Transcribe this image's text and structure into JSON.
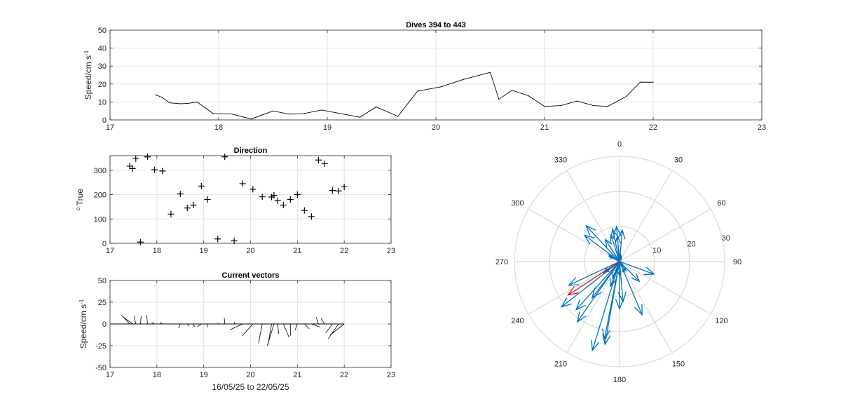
{
  "chart_data": [
    {
      "type": "line",
      "title": "Dives 394 to 443",
      "ylabel": "Speed/cm s",
      "ylabel_sup": "-1",
      "xlim": [
        17,
        23
      ],
      "ylim": [
        0,
        50
      ],
      "xticks": [
        17,
        18,
        19,
        20,
        21,
        22,
        23
      ],
      "yticks": [
        0,
        10,
        20,
        30,
        40,
        50
      ],
      "grid": true,
      "x": [
        17.42,
        17.48,
        17.55,
        17.65,
        17.72,
        17.8,
        17.95,
        18.12,
        18.3,
        18.5,
        18.65,
        18.78,
        18.95,
        19.08,
        19.3,
        19.45,
        19.65,
        19.83,
        20.05,
        20.25,
        20.5,
        20.58,
        20.7,
        20.85,
        21.0,
        21.15,
        21.3,
        21.45,
        21.58,
        21.75,
        21.88,
        22.0
      ],
      "y": [
        14,
        12.5,
        9.5,
        9,
        9.2,
        10,
        3.5,
        3.3,
        0.5,
        5,
        3.2,
        3.5,
        5.5,
        4,
        1.5,
        7.2,
        2,
        16,
        18.5,
        22.5,
        26.5,
        11.5,
        16.5,
        13.5,
        7.5,
        8,
        10.5,
        8,
        7.5,
        13,
        21,
        21
      ]
    },
    {
      "type": "scatter",
      "title": "Direction",
      "ylabel": "True",
      "ylabel_pre": "o",
      "xlim": [
        17,
        23
      ],
      "ylim": [
        0,
        360
      ],
      "xticks": [
        17,
        18,
        19,
        20,
        21,
        22,
        23
      ],
      "yticks": [
        0,
        100,
        200,
        300
      ],
      "grid": true,
      "marker": "+",
      "x": [
        17.42,
        17.48,
        17.55,
        17.65,
        17.8,
        17.95,
        18.12,
        18.3,
        18.5,
        18.65,
        18.78,
        18.95,
        19.08,
        19.3,
        19.45,
        19.65,
        19.83,
        20.05,
        20.25,
        20.45,
        20.5,
        20.58,
        20.7,
        20.85,
        21.0,
        21.15,
        21.3,
        21.45,
        21.58,
        21.75,
        21.88,
        22.0
      ],
      "y": [
        317,
        307,
        348,
        5,
        355,
        302,
        297,
        120,
        203,
        145,
        157,
        235,
        180,
        18,
        355,
        10,
        245,
        222,
        191,
        190,
        197,
        175,
        157,
        180,
        200,
        135,
        110,
        342,
        327,
        217,
        215,
        232
      ]
    },
    {
      "type": "vector",
      "title": "Current vectors",
      "ylabel": "Speed/cm s",
      "ylabel_sup": "-1",
      "xlabel": "16/05/25 to 22/05/25",
      "xlim": [
        17,
        23
      ],
      "ylim": [
        -50,
        50
      ],
      "xticks": [
        17,
        18,
        19,
        20,
        21,
        22,
        23
      ],
      "yticks": [
        -50,
        -25,
        0,
        25,
        50
      ],
      "grid": true,
      "baseline": [
        17,
        22
      ],
      "x": [
        17.42,
        17.48,
        17.55,
        17.65,
        17.8,
        17.95,
        18.12,
        18.3,
        18.5,
        18.65,
        18.78,
        18.95,
        19.08,
        19.3,
        19.45,
        19.65,
        19.83,
        20.05,
        20.25,
        20.45,
        20.5,
        20.58,
        20.7,
        20.85,
        21.0,
        21.15,
        21.3,
        21.45,
        21.58,
        21.75,
        21.88,
        22.0
      ],
      "direction_deg": [
        317,
        307,
        348,
        5,
        355,
        302,
        297,
        120,
        203,
        145,
        157,
        235,
        180,
        18,
        355,
        10,
        245,
        222,
        191,
        190,
        197,
        175,
        157,
        180,
        200,
        135,
        110,
        342,
        327,
        217,
        215,
        232
      ],
      "speed": [
        14,
        12.5,
        9.5,
        9,
        10,
        3.5,
        3.3,
        0.5,
        5,
        3.2,
        3.5,
        5.5,
        4,
        1.5,
        7.2,
        2,
        16,
        18.5,
        22.5,
        24,
        26.5,
        11.5,
        16.5,
        13.5,
        7.5,
        8,
        10.5,
        8,
        7.5,
        13,
        21,
        21
      ]
    },
    {
      "type": "compass",
      "angle_ticks": [
        0,
        30,
        60,
        90,
        120,
        150,
        180,
        210,
        240,
        270,
        300,
        330
      ],
      "radial_ticks": [
        10,
        20,
        30
      ],
      "rmax": 30,
      "series": [
        {
          "color": "#0072bd",
          "direction_deg": [
            317,
            307,
            348,
            5,
            355,
            302,
            297,
            120,
            203,
            145,
            157,
            235,
            180,
            18,
            355,
            10,
            245,
            222,
            191,
            190,
            197,
            175,
            157,
            180,
            200,
            135,
            110,
            342,
            327,
            217,
            215,
            232
          ],
          "speed": [
            14,
            12.5,
            9.5,
            9,
            10,
            3.5,
            3.3,
            0.5,
            5,
            3.2,
            3.5,
            5.5,
            4,
            1.5,
            7.2,
            2,
            16,
            18.5,
            22.5,
            24,
            26.5,
            11.5,
            16.5,
            13.5,
            7.5,
            8,
            10.5,
            8,
            7.5,
            13,
            21,
            21
          ]
        },
        {
          "color": "#d7191c",
          "direction_deg": [
            237
          ],
          "speed": [
            17.5
          ]
        }
      ]
    }
  ]
}
